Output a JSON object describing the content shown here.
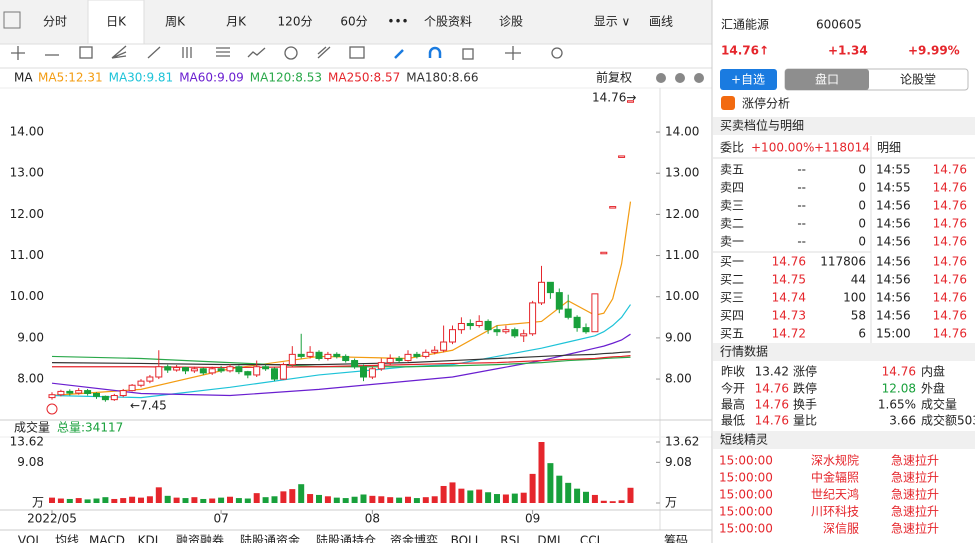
{
  "tabs": [
    "分时",
    "日K",
    "周K",
    "月K",
    "120分",
    "60分",
    "•••",
    "个股资料",
    "诊股",
    "显示 ∨",
    "画线"
  ],
  "chart_data": {
    "type": "candlestick",
    "title": "MA",
    "adjust": "前复权",
    "ylim": [
      7.2,
      14.9
    ],
    "yticks": [
      {
        "value": 14,
        "label": "14.00"
      },
      {
        "value": 13,
        "label": "13.00"
      },
      {
        "value": 12,
        "label": "12.00"
      },
      {
        "value": 11,
        "label": "11.00"
      },
      {
        "value": 10,
        "label": "10.00"
      },
      {
        "value": 9,
        "label": "9.00"
      },
      {
        "value": 8,
        "label": "8.00"
      }
    ],
    "xticks": [
      {
        "value": 0,
        "label": "2022/05"
      },
      {
        "value": 19,
        "label": "07"
      },
      {
        "value": 36,
        "label": "08"
      },
      {
        "value": 54,
        "label": "09"
      }
    ],
    "up_color": "#e5262c",
    "down_color": "#18a03b",
    "ohlc": [
      [
        7.55,
        7.62,
        7.68,
        7.5
      ],
      [
        7.62,
        7.7,
        7.74,
        7.58
      ],
      [
        7.7,
        7.66,
        7.75,
        7.6
      ],
      [
        7.66,
        7.72,
        7.78,
        7.62
      ],
      [
        7.72,
        7.65,
        7.76,
        7.6
      ],
      [
        7.65,
        7.58,
        7.68,
        7.52
      ],
      [
        7.58,
        7.5,
        7.6,
        7.45
      ],
      [
        7.5,
        7.6,
        7.64,
        7.47
      ],
      [
        7.6,
        7.72,
        7.76,
        7.56
      ],
      [
        7.72,
        7.85,
        7.88,
        7.7
      ],
      [
        7.85,
        7.95,
        8.0,
        7.8
      ],
      [
        7.95,
        8.05,
        8.1,
        7.9
      ],
      [
        8.05,
        8.3,
        8.7,
        8.0
      ],
      [
        8.3,
        8.22,
        8.35,
        8.15
      ],
      [
        8.22,
        8.28,
        8.34,
        8.18
      ],
      [
        8.28,
        8.2,
        8.3,
        8.12
      ],
      [
        8.2,
        8.25,
        8.3,
        8.15
      ],
      [
        8.25,
        8.15,
        8.28,
        8.1
      ],
      [
        8.15,
        8.25,
        8.3,
        8.1
      ],
      [
        8.25,
        8.2,
        8.32,
        8.15
      ],
      [
        8.2,
        8.3,
        8.36,
        8.16
      ],
      [
        8.3,
        8.18,
        8.33,
        8.12
      ],
      [
        8.18,
        8.1,
        8.2,
        8.02
      ],
      [
        8.1,
        8.3,
        8.45,
        8.05
      ],
      [
        8.3,
        8.25,
        8.35,
        8.2
      ],
      [
        8.25,
        8.0,
        8.28,
        7.95
      ],
      [
        8.0,
        8.35,
        8.4,
        7.98
      ],
      [
        8.35,
        8.6,
        8.8,
        8.3
      ],
      [
        8.6,
        8.55,
        9.1,
        8.5
      ],
      [
        8.55,
        8.65,
        8.8,
        8.5
      ],
      [
        8.65,
        8.5,
        8.7,
        8.45
      ],
      [
        8.5,
        8.6,
        8.66,
        8.45
      ],
      [
        8.6,
        8.55,
        8.65,
        8.5
      ],
      [
        8.55,
        8.45,
        8.6,
        8.4
      ],
      [
        8.45,
        8.3,
        8.5,
        8.25
      ],
      [
        8.3,
        8.05,
        8.35,
        7.95
      ],
      [
        8.05,
        8.25,
        8.3,
        8.0
      ],
      [
        8.25,
        8.4,
        8.5,
        8.2
      ],
      [
        8.4,
        8.5,
        8.6,
        8.35
      ],
      [
        8.5,
        8.45,
        8.56,
        8.4
      ],
      [
        8.45,
        8.6,
        8.7,
        8.42
      ],
      [
        8.6,
        8.55,
        8.66,
        8.5
      ],
      [
        8.55,
        8.65,
        8.72,
        8.5
      ],
      [
        8.65,
        8.7,
        8.8,
        8.6
      ],
      [
        8.7,
        8.9,
        9.3,
        8.65
      ],
      [
        8.9,
        9.2,
        9.3,
        8.85
      ],
      [
        9.2,
        9.35,
        9.5,
        9.1
      ],
      [
        9.35,
        9.3,
        9.45,
        9.2
      ],
      [
        9.3,
        9.4,
        9.55,
        9.25
      ],
      [
        9.4,
        9.2,
        9.45,
        9.1
      ],
      [
        9.2,
        9.15,
        9.3,
        9.05
      ],
      [
        9.15,
        9.2,
        9.3,
        9.1
      ],
      [
        9.2,
        9.05,
        9.25,
        9.0
      ],
      [
        9.05,
        9.1,
        9.2,
        8.9
      ],
      [
        9.1,
        9.85,
        9.9,
        9.05
      ],
      [
        9.85,
        10.35,
        10.75,
        9.8
      ],
      [
        10.35,
        10.1,
        10.3,
        9.95
      ],
      [
        10.1,
        9.7,
        10.2,
        9.6
      ],
      [
        9.7,
        9.5,
        10.05,
        9.45
      ],
      [
        9.5,
        9.25,
        9.55,
        9.15
      ],
      [
        9.25,
        9.15,
        9.35,
        9.1
      ],
      [
        9.15,
        10.07,
        10.07,
        9.15
      ],
      [
        11.08,
        11.08,
        11.08,
        11.08
      ],
      [
        12.19,
        12.19,
        12.19,
        12.19
      ],
      [
        13.42,
        13.42,
        13.42,
        13.42
      ],
      [
        14.76,
        14.76,
        14.76,
        14.76
      ]
    ],
    "ma_x": [
      0,
      10,
      20,
      30,
      40,
      45,
      50,
      55,
      58,
      61,
      62,
      63,
      64,
      65
    ],
    "ma_lines": [
      {
        "name": "MA5:12.31",
        "color": "#f39c12",
        "values": [
          7.6,
          7.75,
          8.25,
          8.55,
          8.5,
          8.7,
          9.3,
          9.4,
          9.9,
          9.55,
          9.6,
          9.95,
          10.8,
          12.31
        ]
      },
      {
        "name": "MA30:9.81",
        "color": "#1ec3d8",
        "values": [
          7.6,
          7.55,
          7.8,
          8.1,
          8.3,
          8.35,
          8.55,
          8.75,
          8.9,
          9.05,
          9.15,
          9.3,
          9.5,
          9.81
        ]
      },
      {
        "name": "MA60:9.09",
        "color": "#6a1fd0",
        "values": [
          7.9,
          7.65,
          7.6,
          7.75,
          7.95,
          8.05,
          8.25,
          8.45,
          8.6,
          8.75,
          8.8,
          8.87,
          8.95,
          9.09
        ]
      },
      {
        "name": "MA120:8.53",
        "color": "#2aa84a",
        "values": [
          8.55,
          8.5,
          8.4,
          8.3,
          8.3,
          8.32,
          8.35,
          8.4,
          8.45,
          8.48,
          8.5,
          8.51,
          8.52,
          8.53
        ]
      },
      {
        "name": "MA250:8.57",
        "color": "#e5262c",
        "values": [
          8.3,
          8.3,
          8.28,
          8.3,
          8.35,
          8.38,
          8.4,
          8.45,
          8.48,
          8.5,
          8.52,
          8.54,
          8.55,
          8.57
        ]
      },
      {
        "name": "MA180:8.66",
        "color": "#333333",
        "values": [
          8.4,
          8.38,
          8.35,
          8.35,
          8.4,
          8.45,
          8.5,
          8.55,
          8.58,
          8.6,
          8.62,
          8.63,
          8.65,
          8.66
        ]
      }
    ],
    "annotations": [
      "14.76→",
      "←7.45"
    ],
    "volume": {
      "title": "成交量",
      "total": "总量:34117",
      "ylim": [
        0,
        13.62
      ],
      "yticks": [
        13.62,
        9.08,
        {
          "value": 0,
          "label": "万"
        }
      ],
      "values": [
        1.2,
        1.0,
        0.9,
        1.1,
        0.8,
        1.0,
        1.3,
        0.9,
        1.1,
        1.4,
        1.2,
        1.5,
        3.5,
        1.6,
        1.2,
        1.1,
        1.3,
        0.9,
        1.0,
        1.2,
        1.4,
        1.1,
        1.0,
        2.2,
        1.3,
        1.5,
        2.6,
        3.1,
        4.2,
        2.0,
        1.8,
        1.5,
        1.2,
        1.1,
        1.4,
        1.9,
        1.6,
        1.5,
        1.3,
        1.2,
        1.4,
        1.1,
        1.3,
        1.5,
        3.8,
        4.6,
        3.2,
        2.8,
        3.0,
        2.4,
        2.0,
        1.9,
        2.1,
        2.3,
        6.5,
        13.62,
        8.9,
        6.1,
        4.5,
        3.2,
        2.5,
        1.8,
        0.5,
        0.4,
        0.6,
        3.4
      ]
    }
  },
  "bottom_tabs": [
    "VOL",
    "均线",
    "MACD",
    "KDJ",
    "融资融券",
    "陆股通资金",
    "陆股通持仓",
    "资金博弈",
    "BOLL",
    "RSI",
    "DMI",
    "CCI",
    "筹码"
  ],
  "panel": {
    "name": "汇通能源",
    "code": "600605",
    "price": "14.76↑",
    "change": "+1.34",
    "pct": "+9.99%",
    "buttons": [
      "+自选",
      "盘口",
      "论股堂"
    ],
    "limit_up": "涨停分析",
    "book_title": "买卖档位与明细",
    "weibi": [
      "委比",
      "+100.00%",
      "+118014"
    ],
    "detail_title": "明细",
    "book": [
      [
        "卖五",
        "--",
        "0"
      ],
      [
        "卖四",
        "--",
        "0"
      ],
      [
        "卖三",
        "--",
        "0"
      ],
      [
        "卖二",
        "--",
        "0"
      ],
      [
        "卖一",
        "--",
        "0"
      ],
      [
        "买一",
        "14.76",
        "117806"
      ],
      [
        "买二",
        "14.75",
        "44"
      ],
      [
        "买三",
        "14.74",
        "100"
      ],
      [
        "买四",
        "14.73",
        "58"
      ],
      [
        "买五",
        "14.72",
        "6"
      ]
    ],
    "details": [
      [
        "14:55",
        "14.76"
      ],
      [
        "14:55",
        "14.76"
      ],
      [
        "14:56",
        "14.76"
      ],
      [
        "14:56",
        "14.76"
      ],
      [
        "14:56",
        "14.76"
      ],
      [
        "14:56",
        "14.76"
      ],
      [
        "14:56",
        "14.76"
      ],
      [
        "14:56",
        "14.76"
      ],
      [
        "14:56",
        "14.76"
      ],
      [
        "15:00",
        "14.76"
      ]
    ],
    "stats_title": "行情数据",
    "stats": [
      [
        "昨收",
        "13.42",
        "涨停",
        "14.76",
        "内盘"
      ],
      [
        "今开",
        "14.76",
        "跌停",
        "12.08",
        "外盘"
      ],
      [
        "最高",
        "14.76",
        "换手",
        "1.65%",
        "成交量"
      ],
      [
        "最低",
        "14.76",
        "量比",
        "3.66",
        "成交额503"
      ]
    ],
    "alerts_title": "短线精灵",
    "alerts": [
      [
        "15:00:00",
        "深水规院",
        "急速拉升"
      ],
      [
        "15:00:00",
        "中金辐照",
        "急速拉升"
      ],
      [
        "15:00:00",
        "世纪天鸿",
        "急速拉升"
      ],
      [
        "15:00:00",
        "川环科技",
        "急速拉升"
      ],
      [
        "15:00:00",
        "深信服",
        "急速拉升"
      ]
    ]
  }
}
